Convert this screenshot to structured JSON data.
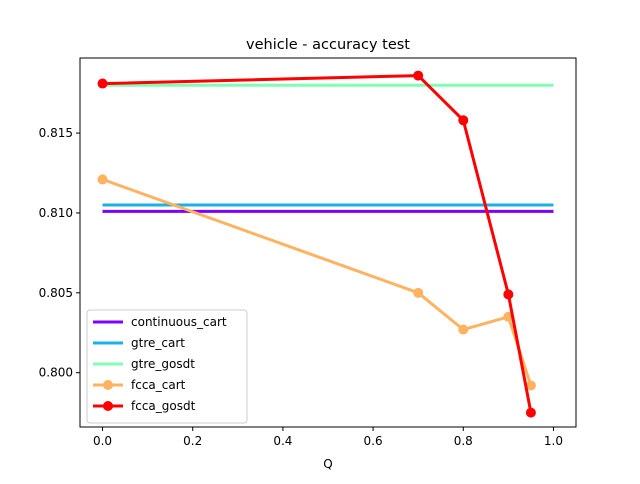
{
  "chart_data": {
    "type": "line",
    "title": "vehicle - accuracy test",
    "xlabel": "Q",
    "ylabel": "",
    "xlim": [
      -0.05,
      1.05
    ],
    "ylim": [
      0.7966,
      0.8197
    ],
    "xticks": [
      0.0,
      0.2,
      0.4,
      0.6,
      0.8,
      1.0
    ],
    "xtick_labels": [
      "0.0",
      "0.2",
      "0.4",
      "0.6",
      "0.8",
      "1.0"
    ],
    "yticks": [
      0.8,
      0.805,
      0.81,
      0.815
    ],
    "ytick_labels": [
      "0.800",
      "0.805",
      "0.810",
      "0.815"
    ],
    "grid": false,
    "legend_position": "lower-left",
    "series": [
      {
        "name": "continuous_cart",
        "color": "#8000ff",
        "marker": false,
        "x": [
          0.0,
          1.0
        ],
        "y": [
          0.8101,
          0.8101
        ]
      },
      {
        "name": "gtre_cart",
        "color": "#1ab2e6",
        "marker": false,
        "x": [
          0.0,
          1.0
        ],
        "y": [
          0.8105,
          0.8105
        ]
      },
      {
        "name": "gtre_gosdt",
        "color": "#80ffb4",
        "marker": false,
        "x": [
          0.0,
          1.0
        ],
        "y": [
          0.818,
          0.818
        ]
      },
      {
        "name": "fcca_cart",
        "color": "#ffb360",
        "marker": true,
        "x": [
          0.0,
          0.7,
          0.8,
          0.9,
          0.95
        ],
        "y": [
          0.8121,
          0.805,
          0.8027,
          0.8035,
          0.7992
        ]
      },
      {
        "name": "fcca_gosdt",
        "color": "#ff0000",
        "marker": true,
        "x": [
          0.0,
          0.7,
          0.8,
          0.9,
          0.95
        ],
        "y": [
          0.8181,
          0.8186,
          0.8158,
          0.8049,
          0.7975
        ]
      }
    ]
  }
}
